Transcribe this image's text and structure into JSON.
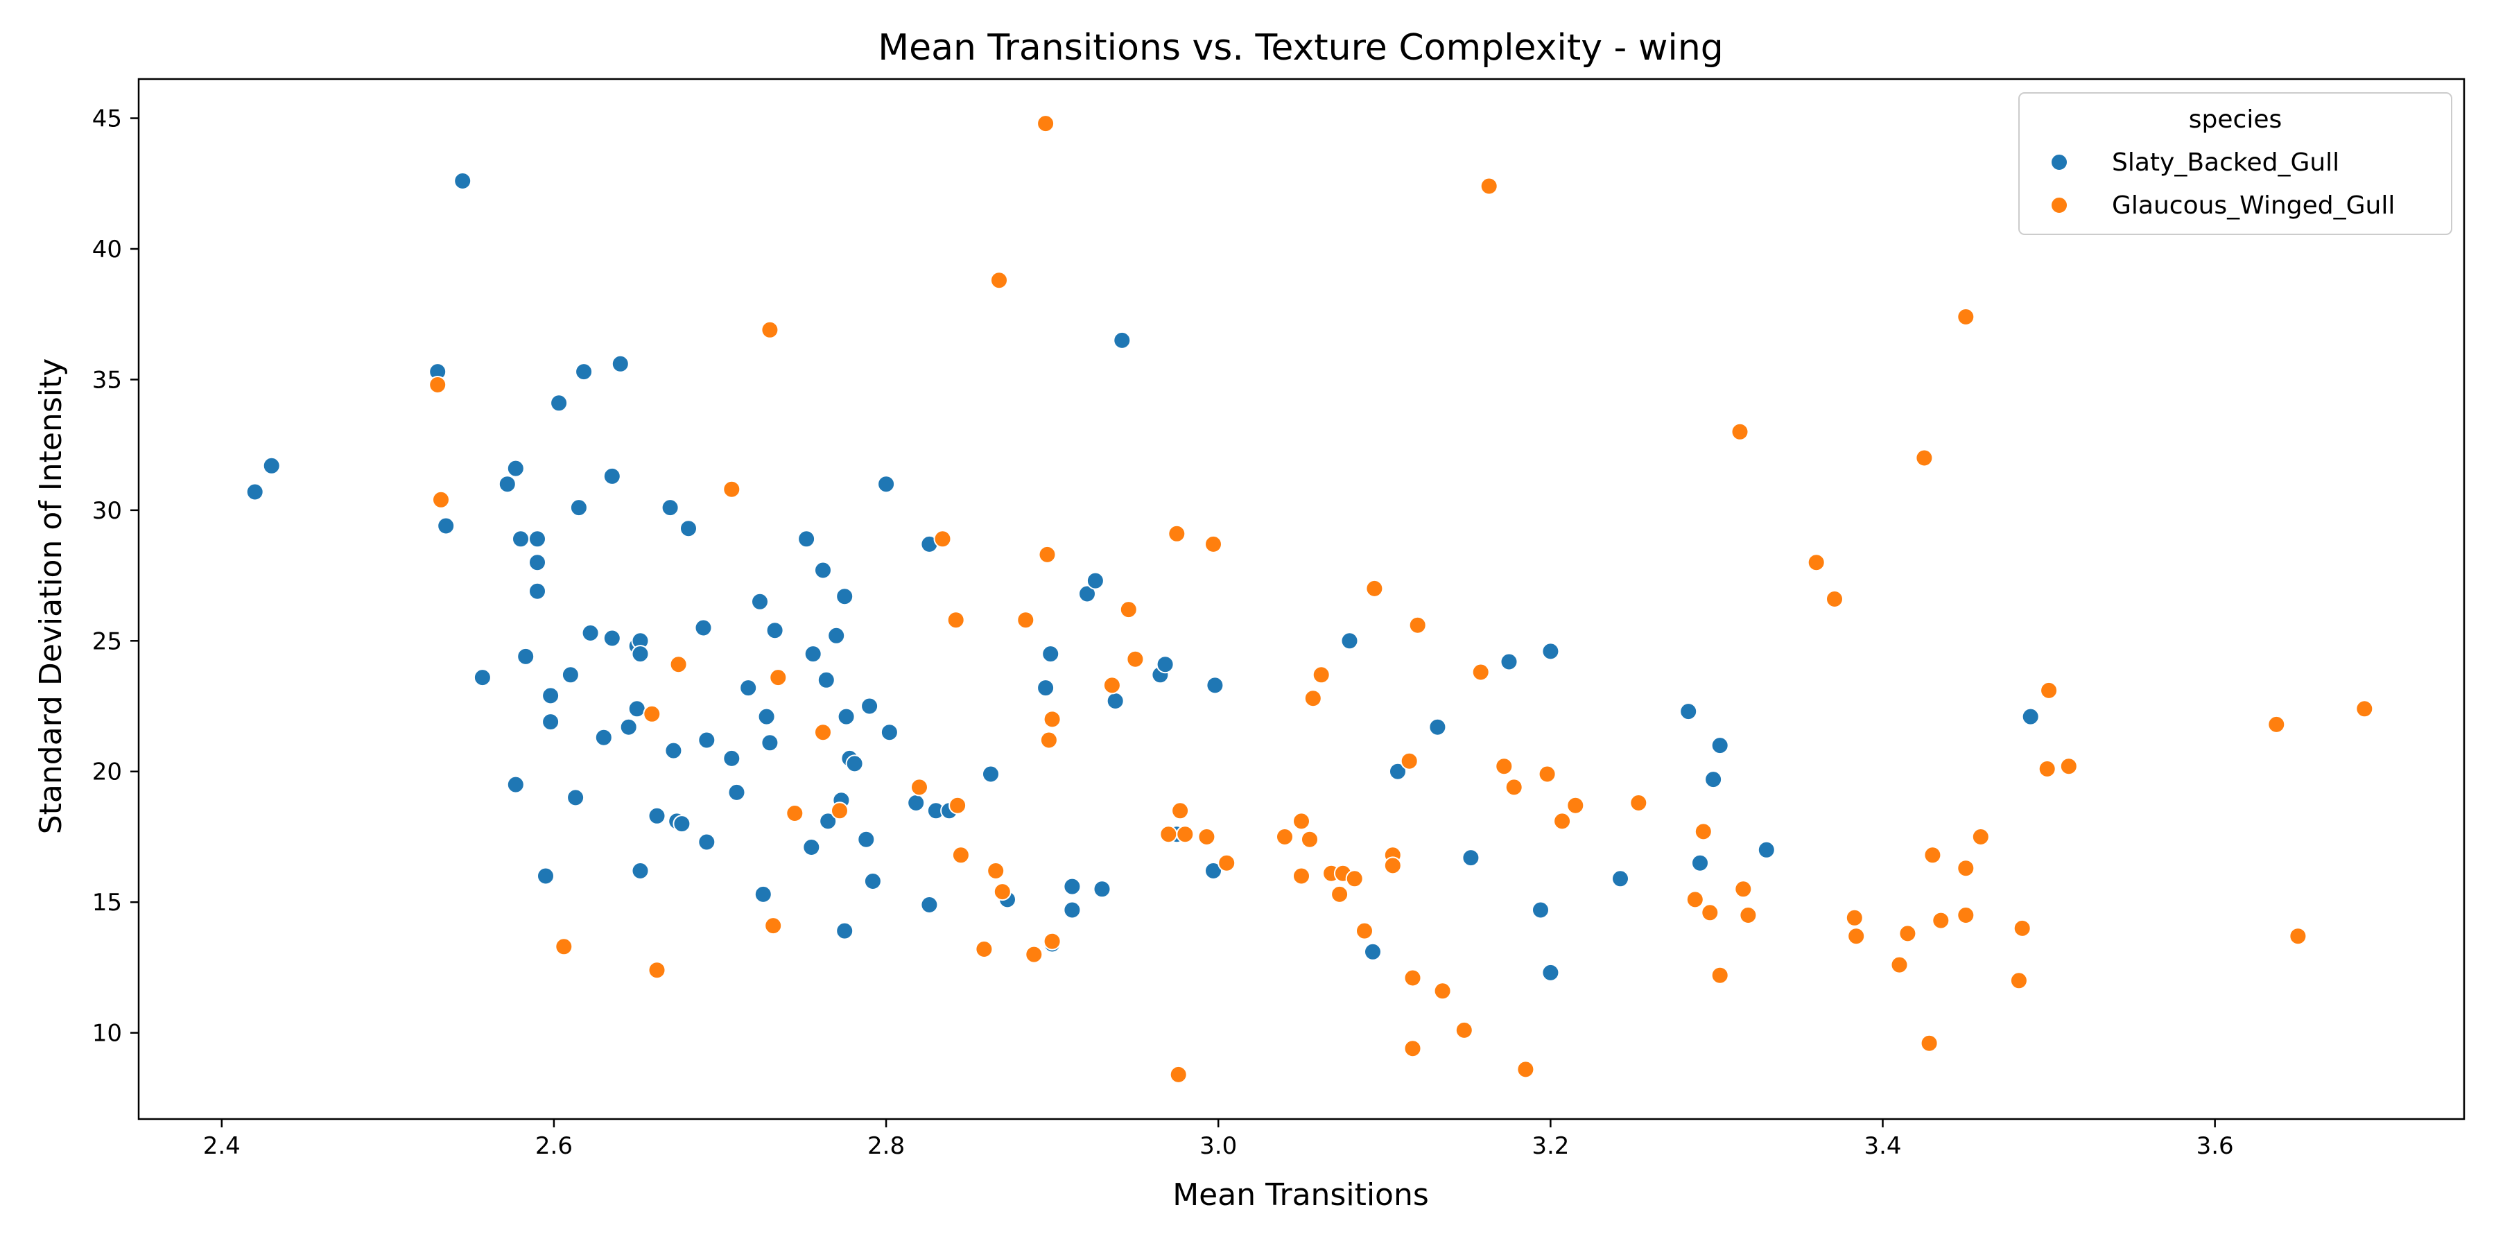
{
  "chart_data": {
    "type": "scatter",
    "title": "Mean Transitions vs. Texture Complexity - wing",
    "xlabel": "Mean Transitions",
    "ylabel": "Standard Deviation of Intensity",
    "xlim": [
      2.35,
      3.75
    ],
    "ylim": [
      6.7,
      46.5
    ],
    "xticks": [
      2.4,
      2.6,
      2.8,
      3.0,
      3.2,
      3.4,
      3.6
    ],
    "xtick_labels": [
      "2.4",
      "2.6",
      "2.8",
      "3.0",
      "3.2",
      "3.4",
      "3.6"
    ],
    "yticks": [
      10,
      15,
      20,
      25,
      30,
      35,
      40,
      45
    ],
    "ytick_labels": [
      "10",
      "15",
      "20",
      "25",
      "30",
      "35",
      "40",
      "45"
    ],
    "grid": false,
    "legend": {
      "title": "species",
      "placement": "top-right"
    },
    "series": [
      {
        "name": "Slaty_Backed_Gull",
        "color": "#1f77b4",
        "points": [
          [
            2.42,
            30.7
          ],
          [
            2.43,
            31.7
          ],
          [
            2.53,
            35.3
          ],
          [
            2.535,
            29.4
          ],
          [
            2.545,
            42.6
          ],
          [
            2.557,
            23.6
          ],
          [
            2.572,
            31.0
          ],
          [
            2.577,
            31.6
          ],
          [
            2.58,
            28.9
          ],
          [
            2.577,
            19.5
          ],
          [
            2.583,
            24.4
          ],
          [
            2.59,
            28.9
          ],
          [
            2.59,
            28.0
          ],
          [
            2.59,
            26.9
          ],
          [
            2.595,
            16.0
          ],
          [
            2.598,
            22.9
          ],
          [
            2.598,
            21.9
          ],
          [
            2.603,
            34.1
          ],
          [
            2.61,
            23.7
          ],
          [
            2.615,
            30.1
          ],
          [
            2.618,
            35.3
          ],
          [
            2.613,
            19.0
          ],
          [
            2.622,
            25.3
          ],
          [
            2.63,
            21.3
          ],
          [
            2.635,
            31.3
          ],
          [
            2.635,
            25.1
          ],
          [
            2.64,
            35.6
          ],
          [
            2.645,
            21.7
          ],
          [
            2.65,
            22.4
          ],
          [
            2.65,
            24.8
          ],
          [
            2.652,
            25.0
          ],
          [
            2.652,
            24.5
          ],
          [
            2.652,
            16.2
          ],
          [
            2.662,
            18.3
          ],
          [
            2.67,
            30.1
          ],
          [
            2.672,
            20.8
          ],
          [
            2.674,
            18.1
          ],
          [
            2.677,
            18.0
          ],
          [
            2.681,
            29.3
          ],
          [
            2.69,
            25.5
          ],
          [
            2.692,
            21.2
          ],
          [
            2.692,
            17.3
          ],
          [
            2.707,
            20.5
          ],
          [
            2.71,
            19.2
          ],
          [
            2.717,
            23.2
          ],
          [
            2.724,
            26.5
          ],
          [
            2.728,
            22.1
          ],
          [
            2.73,
            21.1
          ],
          [
            2.733,
            25.4
          ],
          [
            2.726,
            15.3
          ],
          [
            2.752,
            28.9
          ],
          [
            2.756,
            24.5
          ],
          [
            2.755,
            17.1
          ],
          [
            2.762,
            27.7
          ],
          [
            2.764,
            23.5
          ],
          [
            2.765,
            18.1
          ],
          [
            2.77,
            25.2
          ],
          [
            2.773,
            18.9
          ],
          [
            2.775,
            26.7
          ],
          [
            2.776,
            22.1
          ],
          [
            2.778,
            20.5
          ],
          [
            2.781,
            20.3
          ],
          [
            2.775,
            13.9
          ],
          [
            2.79,
            22.5
          ],
          [
            2.788,
            17.4
          ],
          [
            2.792,
            15.8
          ],
          [
            2.8,
            31.0
          ],
          [
            2.802,
            21.5
          ],
          [
            2.818,
            18.8
          ],
          [
            2.826,
            28.7
          ],
          [
            2.826,
            14.9
          ],
          [
            2.83,
            18.5
          ],
          [
            2.838,
            18.5
          ],
          [
            2.863,
            19.9
          ],
          [
            2.873,
            15.1
          ],
          [
            2.896,
            23.2
          ],
          [
            2.899,
            24.5
          ],
          [
            2.9,
            13.4
          ],
          [
            2.912,
            15.6
          ],
          [
            2.912,
            14.7
          ],
          [
            2.921,
            26.8
          ],
          [
            2.926,
            27.3
          ],
          [
            2.93,
            15.5
          ],
          [
            2.938,
            22.7
          ],
          [
            2.942,
            36.5
          ],
          [
            2.965,
            23.7
          ],
          [
            2.968,
            24.1
          ],
          [
            2.975,
            17.6
          ],
          [
            2.998,
            23.3
          ],
          [
            2.997,
            16.2
          ],
          [
            3.079,
            25.0
          ],
          [
            3.093,
            13.1
          ],
          [
            3.108,
            20.0
          ],
          [
            3.132,
            21.7
          ],
          [
            3.152,
            16.7
          ],
          [
            3.175,
            24.2
          ],
          [
            3.194,
            14.7
          ],
          [
            3.2,
            24.6
          ],
          [
            3.2,
            12.3
          ],
          [
            3.242,
            15.9
          ],
          [
            3.283,
            22.3
          ],
          [
            3.29,
            16.5
          ],
          [
            3.298,
            19.7
          ],
          [
            3.302,
            21.0
          ],
          [
            3.33,
            17.0
          ],
          [
            3.489,
            22.1
          ]
        ]
      },
      {
        "name": "Glaucous_Winged_Gull",
        "color": "#ff7f0e",
        "points": [
          [
            2.53,
            34.8
          ],
          [
            2.532,
            30.4
          ],
          [
            2.606,
            13.3
          ],
          [
            2.659,
            22.2
          ],
          [
            2.662,
            12.4
          ],
          [
            2.675,
            24.1
          ],
          [
            2.707,
            30.8
          ],
          [
            2.73,
            36.9
          ],
          [
            2.732,
            14.1
          ],
          [
            2.735,
            23.6
          ],
          [
            2.745,
            18.4
          ],
          [
            2.762,
            21.5
          ],
          [
            2.772,
            18.5
          ],
          [
            2.82,
            19.4
          ],
          [
            2.834,
            28.9
          ],
          [
            2.842,
            25.8
          ],
          [
            2.843,
            18.7
          ],
          [
            2.845,
            16.8
          ],
          [
            2.859,
            13.2
          ],
          [
            2.866,
            16.2
          ],
          [
            2.868,
            38.8
          ],
          [
            2.87,
            15.4
          ],
          [
            2.884,
            25.8
          ],
          [
            2.889,
            13.0
          ],
          [
            2.896,
            44.8
          ],
          [
            2.897,
            28.3
          ],
          [
            2.898,
            21.2
          ],
          [
            2.9,
            22.0
          ],
          [
            2.9,
            13.5
          ],
          [
            2.936,
            23.3
          ],
          [
            2.946,
            26.2
          ],
          [
            2.95,
            24.3
          ],
          [
            2.97,
            17.6
          ],
          [
            2.975,
            29.1
          ],
          [
            2.977,
            18.5
          ],
          [
            2.976,
            8.4
          ],
          [
            2.98,
            17.6
          ],
          [
            2.993,
            17.5
          ],
          [
            2.997,
            28.7
          ],
          [
            3.005,
            16.5
          ],
          [
            3.04,
            17.5
          ],
          [
            3.05,
            18.1
          ],
          [
            3.05,
            16.0
          ],
          [
            3.055,
            17.4
          ],
          [
            3.057,
            22.8
          ],
          [
            3.062,
            23.7
          ],
          [
            3.068,
            16.1
          ],
          [
            3.073,
            15.3
          ],
          [
            3.075,
            16.1
          ],
          [
            3.082,
            15.9
          ],
          [
            3.088,
            13.9
          ],
          [
            3.094,
            27.0
          ],
          [
            3.105,
            16.8
          ],
          [
            3.105,
            16.4
          ],
          [
            3.115,
            20.4
          ],
          [
            3.117,
            12.1
          ],
          [
            3.117,
            9.4
          ],
          [
            3.12,
            25.6
          ],
          [
            3.135,
            11.6
          ],
          [
            3.148,
            10.1
          ],
          [
            3.158,
            23.8
          ],
          [
            3.163,
            42.4
          ],
          [
            3.172,
            20.2
          ],
          [
            3.178,
            19.4
          ],
          [
            3.185,
            8.6
          ],
          [
            3.198,
            19.9
          ],
          [
            3.207,
            18.1
          ],
          [
            3.215,
            18.7
          ],
          [
            3.253,
            18.8
          ],
          [
            3.287,
            15.1
          ],
          [
            3.292,
            17.7
          ],
          [
            3.296,
            14.6
          ],
          [
            3.302,
            12.2
          ],
          [
            3.314,
            33.0
          ],
          [
            3.316,
            15.5
          ],
          [
            3.319,
            14.5
          ],
          [
            3.36,
            28.0
          ],
          [
            3.371,
            26.6
          ],
          [
            3.383,
            14.4
          ],
          [
            3.384,
            13.7
          ],
          [
            3.41,
            12.6
          ],
          [
            3.415,
            13.8
          ],
          [
            3.425,
            32.0
          ],
          [
            3.428,
            9.6
          ],
          [
            3.43,
            16.8
          ],
          [
            3.435,
            14.3
          ],
          [
            3.45,
            37.4
          ],
          [
            3.45,
            16.3
          ],
          [
            3.45,
            14.5
          ],
          [
            3.459,
            17.5
          ],
          [
            3.482,
            12.0
          ],
          [
            3.484,
            14.0
          ],
          [
            3.499,
            20.1
          ],
          [
            3.5,
            23.1
          ],
          [
            3.512,
            20.2
          ],
          [
            3.637,
            21.8
          ],
          [
            3.65,
            13.7
          ],
          [
            3.69,
            22.4
          ]
        ]
      }
    ]
  }
}
